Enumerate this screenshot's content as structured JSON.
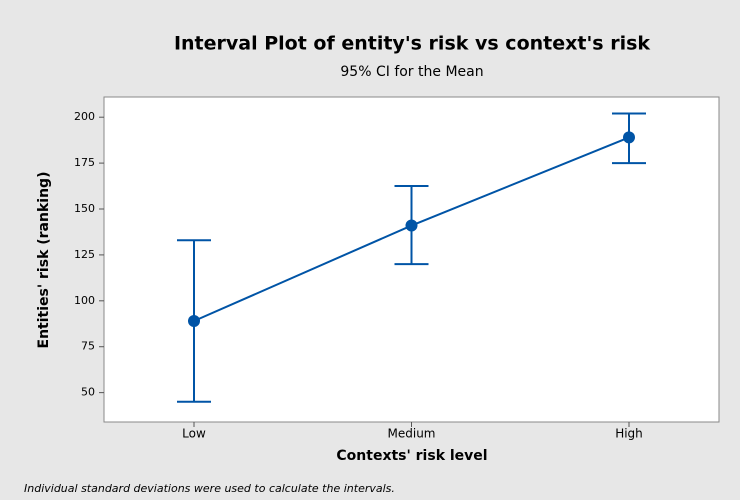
{
  "chart_data": {
    "type": "interval",
    "title": "Interval Plot of  entity's risk vs context's risk",
    "subtitle": "95% CI for the Mean",
    "xlabel": "Contexts' risk level",
    "ylabel": "Entities' risk (ranking)",
    "note": "Individual standard deviations were used to calculate the intervals.",
    "categories": [
      "Low",
      "Medium",
      "High"
    ],
    "values": [
      89,
      141,
      189
    ],
    "lower": [
      45,
      120,
      175
    ],
    "upper": [
      133,
      162.5,
      202
    ],
    "color": "#0054a6",
    "ylim": [
      34,
      211
    ],
    "yticks": [
      50,
      75,
      100,
      125,
      150,
      175,
      200
    ]
  }
}
